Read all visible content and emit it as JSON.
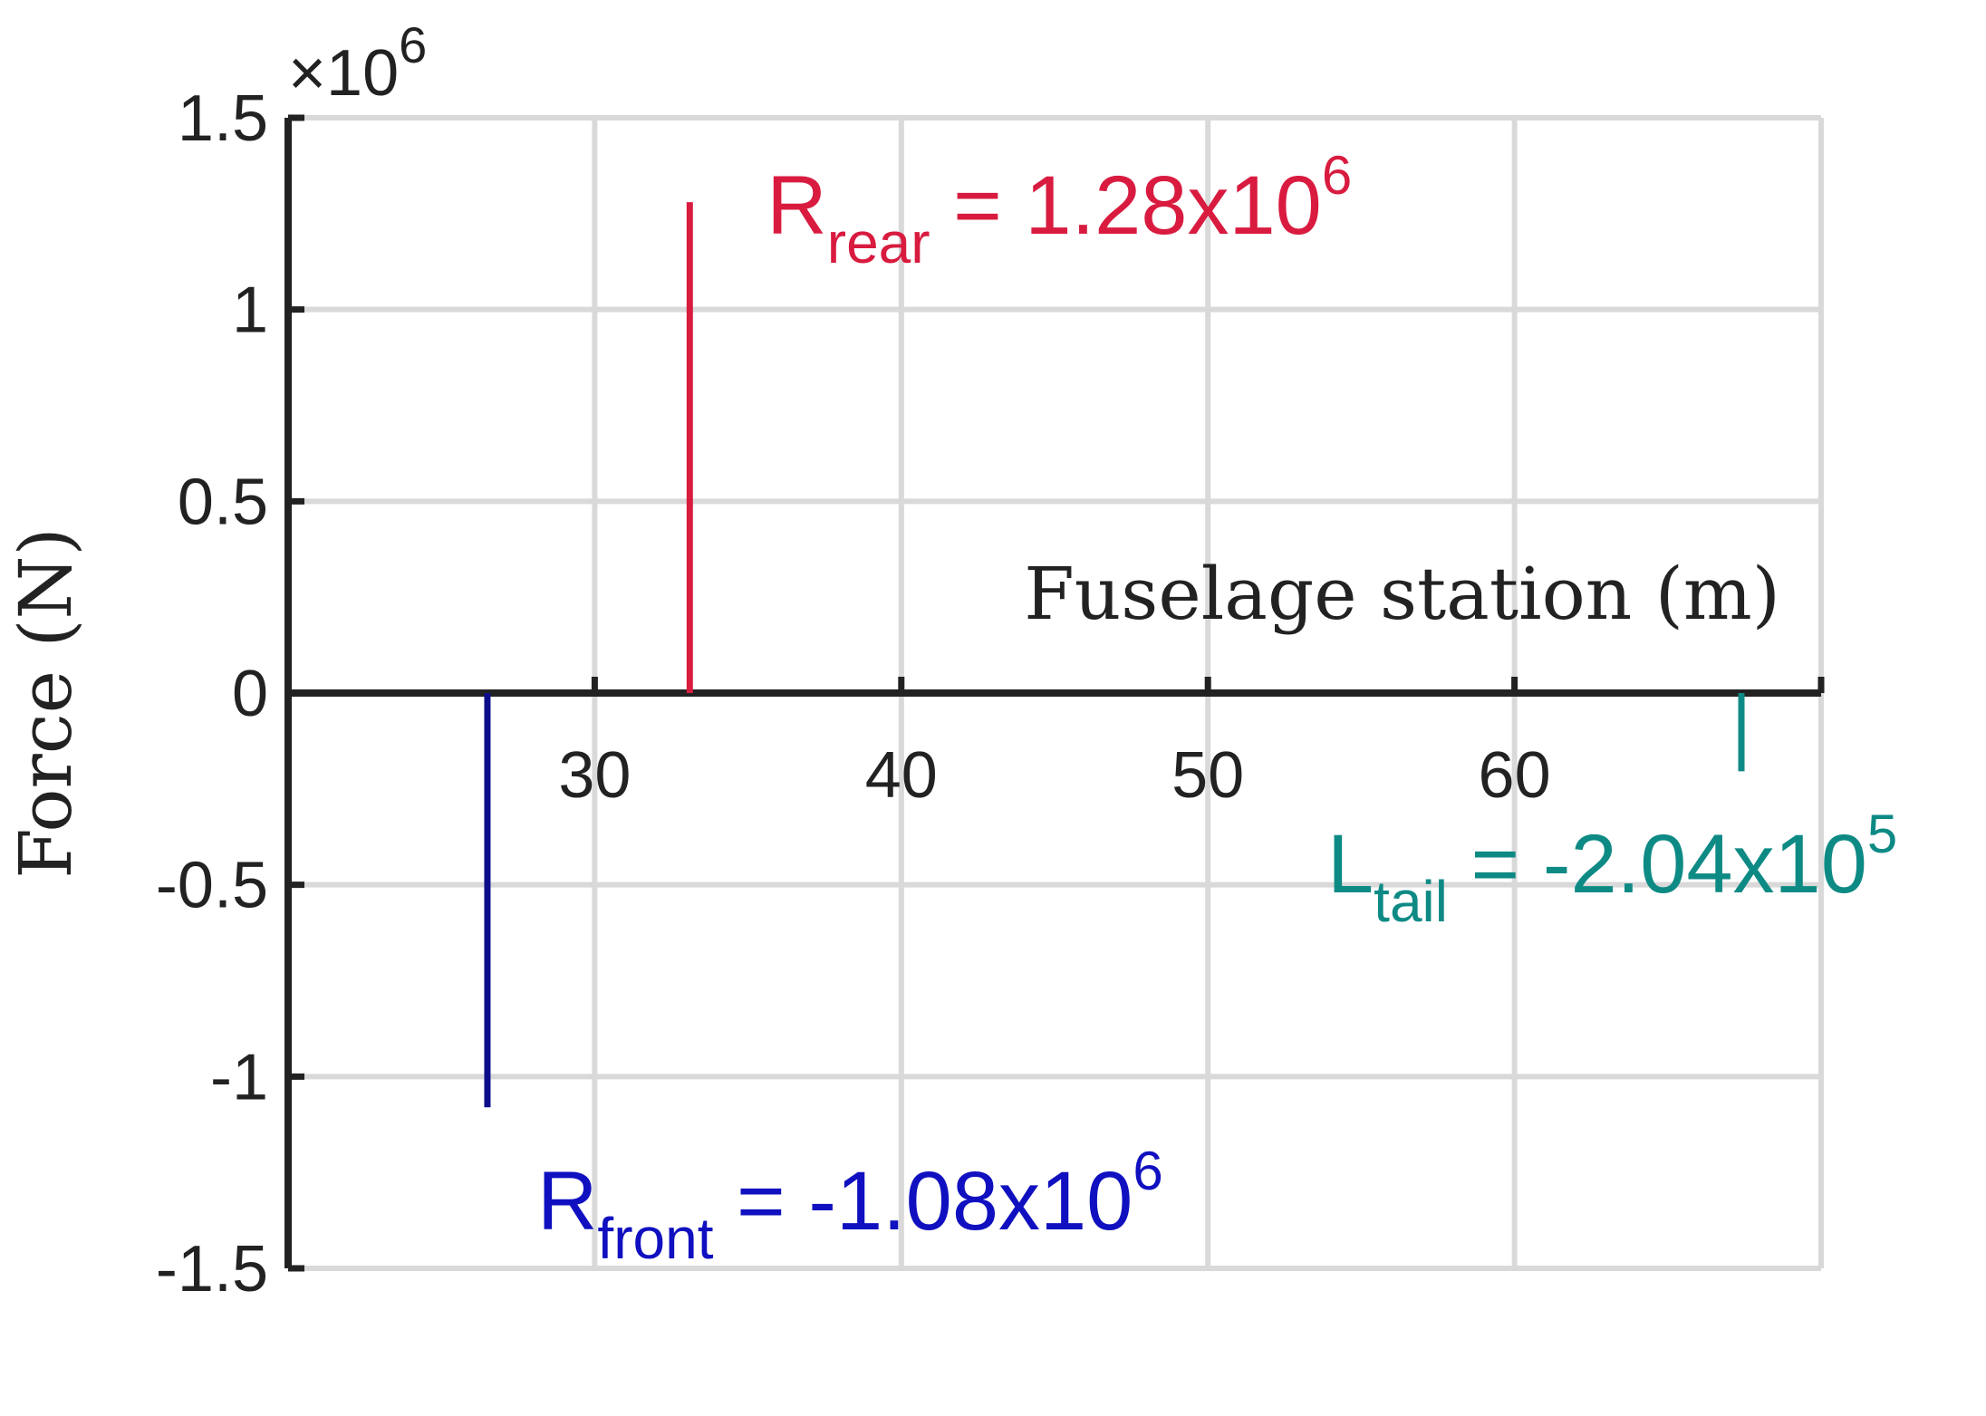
{
  "chart_data": {
    "type": "bar",
    "title": "",
    "xlabel": "Fuselage station (m)",
    "ylabel": "Force (N)",
    "y_exponent_label": "×10",
    "y_exponent": "6",
    "xlim": [
      20,
      70
    ],
    "ylim": [
      -1.5,
      1.5
    ],
    "x_ticks": [
      30,
      40,
      50,
      60
    ],
    "x_tick_labels": [
      "30",
      "40",
      "50",
      "60"
    ],
    "y_ticks": [
      -1.5,
      -1,
      -0.5,
      0,
      0.5,
      1,
      1.5
    ],
    "y_tick_labels": [
      "-1.5",
      "-1",
      "-0.5",
      "0",
      "0.5",
      "1",
      "1.5"
    ],
    "grid": true,
    "x_axis_at_zero": true,
    "series": [
      {
        "x": 26.5,
        "y": -1.08,
        "color": "#0d0d8c",
        "label": {
          "main": "R",
          "sub": "front",
          "text": " = -1.08x10",
          "sup": "6",
          "color": "#1010c0"
        }
      },
      {
        "x": 33.1,
        "y": 1.28,
        "color": "#d81b3f",
        "label": {
          "main": "R",
          "sub": "rear",
          "text": " = 1.28x10",
          "sup": "6",
          "color": "#d81b3f"
        }
      },
      {
        "x": 67.4,
        "y": -0.204,
        "color": "#0e8a85",
        "label": {
          "main": "L",
          "sub": "tail",
          "text": " = -2.04x10",
          "sup": "5",
          "color": "#0e8a85"
        }
      }
    ]
  }
}
